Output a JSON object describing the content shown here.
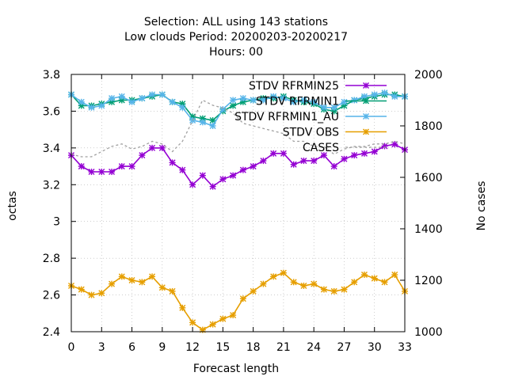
{
  "chart_data": {
    "type": "line",
    "title_lines": [
      "Selection: ALL using   143 stations",
      "Low clouds   Period: 20200203-20200217",
      "Hours:  00"
    ],
    "xlabel": "Forecast length",
    "ylabel": "octas",
    "y2label": "No cases",
    "xlim": [
      0,
      33
    ],
    "ylim": [
      2.4,
      3.8
    ],
    "y2lim": [
      1000,
      2000
    ],
    "xticks": [
      "0",
      "3",
      "6",
      "9",
      "12",
      "15",
      "18",
      "21",
      "24",
      "27",
      "30",
      "33"
    ],
    "yticks": [
      "2.4",
      "2.6",
      "2.8",
      "3",
      "3.2",
      "3.4",
      "3.6",
      "3.8"
    ],
    "y2ticks": [
      "1000",
      "1200",
      "1400",
      "1600",
      "1800",
      "2000"
    ],
    "grid": true,
    "legend_position": "top-right",
    "x": [
      0,
      1,
      2,
      3,
      4,
      5,
      6,
      7,
      8,
      9,
      10,
      11,
      12,
      13,
      14,
      15,
      16,
      17,
      18,
      19,
      20,
      21,
      22,
      23,
      24,
      25,
      26,
      27,
      28,
      29,
      30,
      31,
      32,
      33
    ],
    "series": [
      {
        "name": "STDV RFRMIN25",
        "color": "#9400d3",
        "axis": "y1",
        "values": [
          3.36,
          3.3,
          3.27,
          3.27,
          3.27,
          3.3,
          3.3,
          3.36,
          3.4,
          3.4,
          3.32,
          3.28,
          3.2,
          3.25,
          3.19,
          3.23,
          3.25,
          3.28,
          3.3,
          3.33,
          3.37,
          3.37,
          3.31,
          3.33,
          3.33,
          3.36,
          3.3,
          3.34,
          3.36,
          3.37,
          3.38,
          3.41,
          3.42,
          3.39
        ]
      },
      {
        "name": "STDV RFRMIN1",
        "color": "#009e73",
        "axis": "y1",
        "values": [
          3.69,
          3.63,
          3.63,
          3.64,
          3.65,
          3.66,
          3.66,
          3.67,
          3.68,
          3.69,
          3.65,
          3.64,
          3.57,
          3.56,
          3.55,
          3.6,
          3.63,
          3.65,
          3.66,
          3.67,
          3.67,
          3.68,
          3.66,
          3.65,
          3.64,
          3.61,
          3.6,
          3.63,
          3.66,
          3.67,
          3.68,
          3.69,
          3.69,
          3.68
        ]
      },
      {
        "name": "STDV RFRMIN1_AU",
        "color": "#56b4e9",
        "axis": "y1",
        "values": [
          3.69,
          3.65,
          3.62,
          3.63,
          3.67,
          3.68,
          3.65,
          3.67,
          3.69,
          3.69,
          3.65,
          3.62,
          3.55,
          3.54,
          3.52,
          3.61,
          3.66,
          3.67,
          3.66,
          3.66,
          3.68,
          3.67,
          3.65,
          3.66,
          3.65,
          3.62,
          3.62,
          3.65,
          3.66,
          3.68,
          3.69,
          3.7,
          3.68,
          3.68
        ]
      },
      {
        "name": "STDV OBS",
        "color": "#e69f00",
        "axis": "y1",
        "values": [
          2.65,
          2.63,
          2.6,
          2.61,
          2.66,
          2.7,
          2.68,
          2.67,
          2.7,
          2.64,
          2.62,
          2.53,
          2.45,
          2.41,
          2.44,
          2.47,
          2.49,
          2.58,
          2.62,
          2.66,
          2.7,
          2.72,
          2.67,
          2.65,
          2.66,
          2.63,
          2.62,
          2.63,
          2.67,
          2.71,
          2.69,
          2.67,
          2.71,
          2.62
        ]
      },
      {
        "name": "CASES",
        "color": "#a0a0a0",
        "axis": "y2",
        "values": [
          1690,
          1680,
          1680,
          1700,
          1720,
          1730,
          1710,
          1720,
          1740,
          1730,
          1700,
          1740,
          1820,
          1900,
          1880,
          1870,
          1850,
          1810,
          1800,
          1790,
          1780,
          1770,
          1740,
          1740,
          1720,
          1720,
          1690,
          1710,
          1720,
          1720,
          1730,
          1730,
          1740,
          1730
        ]
      }
    ]
  }
}
